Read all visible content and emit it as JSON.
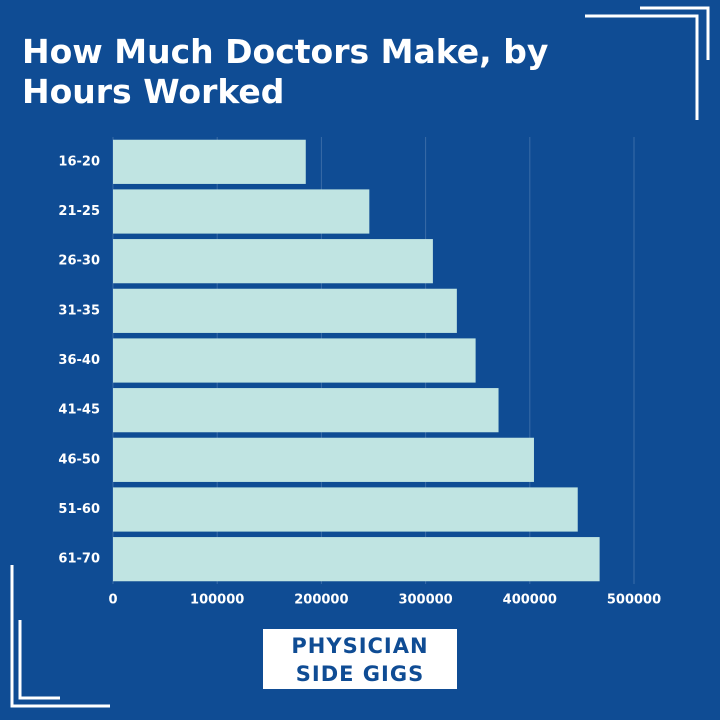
{
  "chart_data": {
    "type": "bar",
    "orientation": "horizontal",
    "title": "How Much Doctors Make, by Hours Worked",
    "categories": [
      "16-20",
      "21-25",
      "26-30",
      "31-35",
      "36-40",
      "41-45",
      "46-50",
      "51-60",
      "61-70"
    ],
    "values": [
      185000,
      246000,
      307000,
      330000,
      348000,
      370000,
      404000,
      446000,
      467000
    ],
    "color": "#c0e4e2",
    "xlim": [
      0,
      500000
    ],
    "xticks": [
      0,
      100000,
      200000,
      300000,
      400000,
      500000
    ],
    "grid": true,
    "brand": [
      "PHYSICIAN",
      "SIDE GIGS"
    ]
  }
}
